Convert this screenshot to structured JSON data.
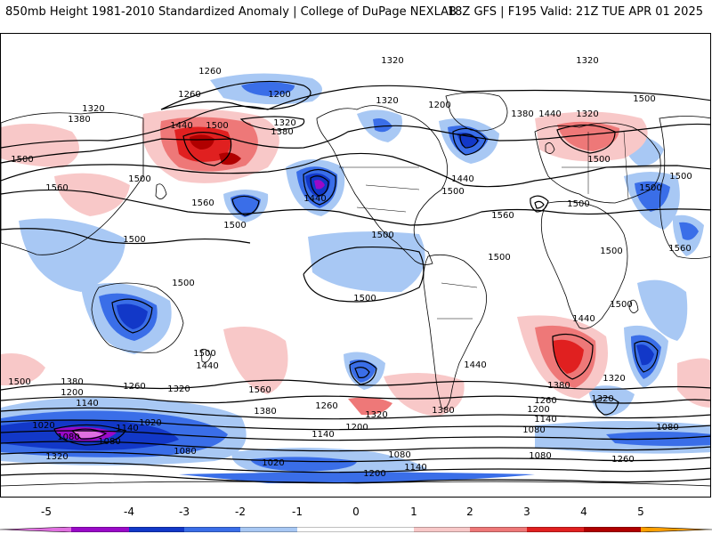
{
  "header": {
    "title": "850mb Height 1981-2010 Standardized Anomaly | College of DuPage NEXLAB",
    "run_info": "18Z GFS | F195 Valid: 21Z TUE APR 01 2025"
  },
  "colors": {
    "below_5": "#e070e0",
    "m5_m4": "#9a0ac8",
    "m4_m3": "#1238c8",
    "m3_m2": "#3a6ee8",
    "m2_m1": "#a8c8f4",
    "m1_0": "#ffffff",
    "p0_1": "#ffffff",
    "p1_2": "#f8c8c8",
    "p2_3": "#ee7878",
    "p3_4": "#e02020",
    "p4_5": "#b00000",
    "p5_plus": "#ffa000",
    "coast": "#000000",
    "contour": "#000000"
  },
  "colorbar": {
    "ticks": [
      "-5",
      "-4",
      "-3",
      "-2",
      "-1",
      "0",
      "1",
      "2",
      "3",
      "4",
      "5"
    ]
  },
  "contour_labels": [
    {
      "text": "1260",
      "id": "c1"
    },
    {
      "text": "1320",
      "id": "c2"
    },
    {
      "text": "1320",
      "id": "c3"
    },
    {
      "text": "1260",
      "id": "c4"
    },
    {
      "text": "1200",
      "id": "c5"
    },
    {
      "text": "1320",
      "id": "c6"
    },
    {
      "text": "1320",
      "id": "c7"
    },
    {
      "text": "1380",
      "id": "c8"
    },
    {
      "text": "1440",
      "id": "c9"
    },
    {
      "text": "1500",
      "id": "c10"
    },
    {
      "text": "1320",
      "id": "c11"
    },
    {
      "text": "1380",
      "id": "c12"
    },
    {
      "text": "1500",
      "id": "c13"
    },
    {
      "text": "1560",
      "id": "c14"
    },
    {
      "text": "1500",
      "id": "c15"
    },
    {
      "text": "1560",
      "id": "c16"
    },
    {
      "text": "1440",
      "id": "c17"
    },
    {
      "text": "1500",
      "id": "c18"
    },
    {
      "text": "1500",
      "id": "c19"
    },
    {
      "text": "1500",
      "id": "c20"
    },
    {
      "text": "1500",
      "id": "c21"
    },
    {
      "text": "1500",
      "id": "c22"
    },
    {
      "text": "1560",
      "id": "c23"
    },
    {
      "text": "1500",
      "id": "c24"
    },
    {
      "text": "1500",
      "id": "c25"
    },
    {
      "text": "1500",
      "id": "c26"
    },
    {
      "text": "1440",
      "id": "c27"
    },
    {
      "text": "1500",
      "id": "c28"
    },
    {
      "text": "1440",
      "id": "c29"
    },
    {
      "text": "1500",
      "id": "c30"
    },
    {
      "text": "1380",
      "id": "c31"
    },
    {
      "text": "1200",
      "id": "c32"
    },
    {
      "text": "1260",
      "id": "c33"
    },
    {
      "text": "1320",
      "id": "c34"
    },
    {
      "text": "1560",
      "id": "c35"
    },
    {
      "text": "1140",
      "id": "c36"
    },
    {
      "text": "1380",
      "id": "c37"
    },
    {
      "text": "1260",
      "id": "c38"
    },
    {
      "text": "1320",
      "id": "c39"
    },
    {
      "text": "1200",
      "id": "c40"
    },
    {
      "text": "1140",
      "id": "c41"
    },
    {
      "text": "1380",
      "id": "c42"
    },
    {
      "text": "1020",
      "id": "c43"
    },
    {
      "text": "1080",
      "id": "c44"
    },
    {
      "text": "1140",
      "id": "c45"
    },
    {
      "text": "1020",
      "id": "c46"
    },
    {
      "text": "1080",
      "id": "c47"
    },
    {
      "text": "1080",
      "id": "c48"
    },
    {
      "text": "1020",
      "id": "c49"
    },
    {
      "text": "1200",
      "id": "c50"
    },
    {
      "text": "1080",
      "id": "c51"
    },
    {
      "text": "1140",
      "id": "c52"
    },
    {
      "text": "1080",
      "id": "c53"
    },
    {
      "text": "1260",
      "id": "c54"
    },
    {
      "text": "1320",
      "id": "c55"
    },
    {
      "text": "1320",
      "id": "c56"
    },
    {
      "text": "1380",
      "id": "c57"
    },
    {
      "text": "1440",
      "id": "c58"
    },
    {
      "text": "1500",
      "id": "c59"
    },
    {
      "text": "1500",
      "id": "c60"
    },
    {
      "text": "1500",
      "id": "c61"
    },
    {
      "text": "1560",
      "id": "c62"
    },
    {
      "text": "1440",
      "id": "c63"
    },
    {
      "text": "1380",
      "id": "c64"
    },
    {
      "text": "1320",
      "id": "c65"
    },
    {
      "text": "1260",
      "id": "c66"
    },
    {
      "text": "1200",
      "id": "c67"
    },
    {
      "text": "1140",
      "id": "c68"
    },
    {
      "text": "1080",
      "id": "c69"
    },
    {
      "text": "1320",
      "id": "c70"
    },
    {
      "text": "1200",
      "id": "c71"
    },
    {
      "text": "1080",
      "id": "c72"
    },
    {
      "text": "1500",
      "id": "c73"
    },
    {
      "text": "1500",
      "id": "c74"
    },
    {
      "text": "1500",
      "id": "c75"
    },
    {
      "text": "1440",
      "id": "c76"
    },
    {
      "text": "1500",
      "id": "c77"
    }
  ]
}
